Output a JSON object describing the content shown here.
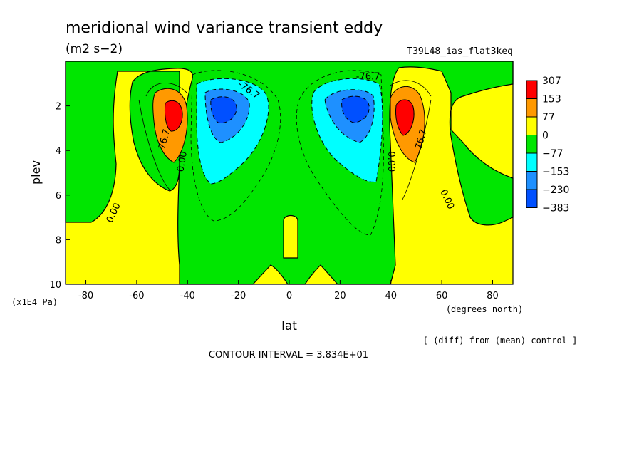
{
  "chart_data": {
    "type": "heatmap",
    "title": "meridional wind variance transient eddy",
    "units": "(m2 s−2)",
    "run_label": "T39L48_ias_flat3keq",
    "xlabel": "lat",
    "xunits": "(degrees_north)",
    "ylabel": "plev",
    "yunits": "(x1E4 Pa)",
    "x_ticks": [
      -80,
      -60,
      -40,
      -20,
      0,
      20,
      40,
      60,
      80
    ],
    "y_ticks": [
      2,
      4,
      6,
      8,
      10
    ],
    "xlim": [
      -88,
      88
    ],
    "ylim": [
      10,
      0
    ],
    "note": "[ (diff) from (mean) control ]",
    "contour_interval": "CONTOUR INTERVAL = 3.834E+01",
    "colorbar_levels": [
      "307",
      "153",
      "77",
      "0",
      "−77",
      "−153",
      "−230",
      "−383"
    ],
    "colorbar_colors": [
      "#ff0000",
      "#ff9900",
      "#ffff00",
      "#00e600",
      "#00ffff",
      "#1e90ff",
      "#0050ff"
    ],
    "contour_labels": [
      {
        "text": "76.7",
        "lat": -49,
        "plev": 3.5,
        "angle": -75
      },
      {
        "text": "0.00",
        "lat": -42,
        "plev": 4.5,
        "angle": -80
      },
      {
        "text": "0.00",
        "lat": -69,
        "plev": 6.8,
        "angle": -65
      },
      {
        "text": "-76.7",
        "lat": -16,
        "plev": 1.3,
        "angle": 35
      },
      {
        "text": "-76.7",
        "lat": 31,
        "plev": 0.7,
        "angle": 0
      },
      {
        "text": "0.00",
        "lat": 40,
        "plev": 4.5,
        "angle": 90
      },
      {
        "text": "76.7",
        "lat": 52,
        "plev": 3.5,
        "angle": -75
      },
      {
        "text": "0.00",
        "lat": 62,
        "plev": 6.2,
        "angle": 65
      }
    ]
  }
}
